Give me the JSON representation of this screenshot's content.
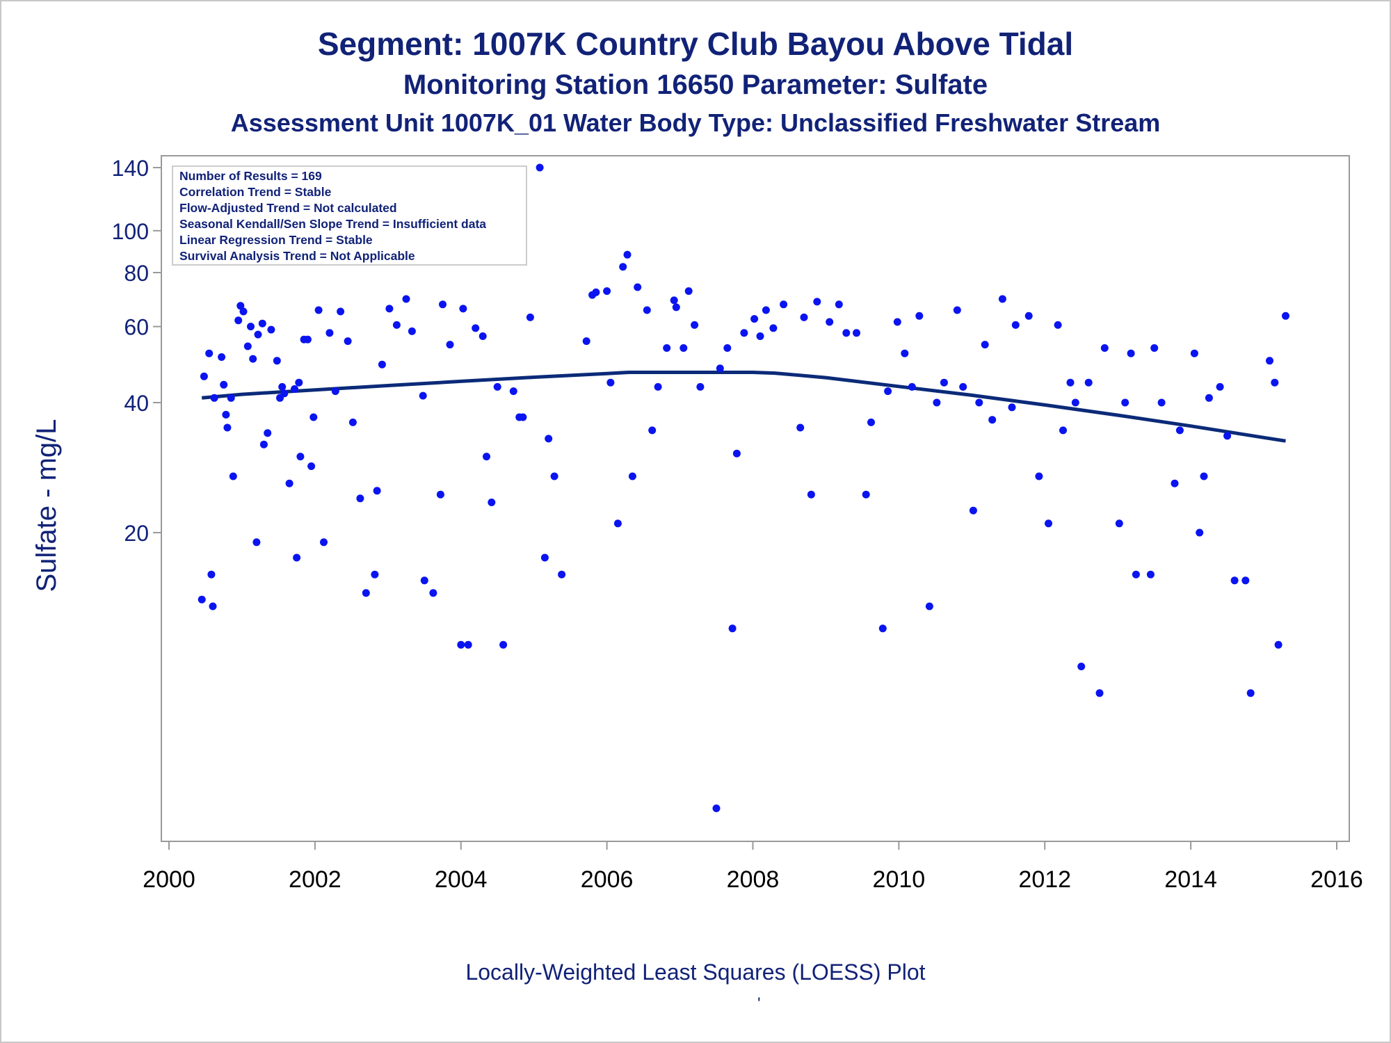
{
  "chart_data": {
    "type": "scatter",
    "title": "Segment: 1007K  Country Club Bayou Above Tidal",
    "subtitle": "Monitoring Station 16650 Parameter: Sulfate",
    "subtitle2": "Assessment Unit 1007K_01   Water Body Type: Unclassified Freshwater Stream",
    "ylabel": "Sulfate - mg/L",
    "footnote": "Locally-Weighted Least Squares (LOESS) Plot",
    "footnote_mark": "'",
    "y_scale": "log",
    "xlim": [
      2000,
      2016
    ],
    "ylim": [
      4.5,
      150
    ],
    "x_ticks": [
      2000,
      2002,
      2004,
      2006,
      2008,
      2010,
      2012,
      2014,
      2016
    ],
    "x_tick_labels": [
      "2000",
      "2002",
      "2004",
      "2006",
      "2008",
      "2010",
      "2012",
      "2014",
      "2016"
    ],
    "y_ticks": [
      20,
      40,
      60,
      80,
      100,
      140
    ],
    "y_tick_labels": [
      "20",
      "40",
      "60",
      "80",
      "100",
      "140"
    ],
    "grid": false,
    "legend_box_position": "top-left",
    "stats": [
      "Number of Results = 169",
      "Correlation Trend = Stable",
      "Flow-Adjusted Trend = Not calculated",
      "Seasonal Kendall/Sen Slope Trend = Insufficient data",
      "Linear Regression Trend = Stable",
      "Survival Analysis Trend = Not Applicable"
    ],
    "colors": {
      "points": "#0a14f0",
      "loess": "#0b2a78",
      "text": "#112277",
      "frame": "#999999"
    },
    "series": [
      {
        "kind": "points",
        "points": [
          [
            2000.45,
            14
          ],
          [
            2000.48,
            46
          ],
          [
            2000.55,
            52
          ],
          [
            2000.58,
            16
          ],
          [
            2000.6,
            13.5
          ],
          [
            2000.62,
            41
          ],
          [
            2000.72,
            51
          ],
          [
            2000.75,
            44
          ],
          [
            2000.78,
            37.5
          ],
          [
            2000.8,
            35
          ],
          [
            2000.85,
            41
          ],
          [
            2000.88,
            27
          ],
          [
            2000.95,
            62
          ],
          [
            2000.98,
            67
          ],
          [
            2001.02,
            65
          ],
          [
            2001.08,
            54
          ],
          [
            2001.12,
            60
          ],
          [
            2001.15,
            50.5
          ],
          [
            2001.2,
            19
          ],
          [
            2001.22,
            57.5
          ],
          [
            2001.28,
            61
          ],
          [
            2001.3,
            32
          ],
          [
            2001.35,
            34
          ],
          [
            2001.4,
            59
          ],
          [
            2001.48,
            50
          ],
          [
            2001.52,
            41
          ],
          [
            2001.55,
            43.5
          ],
          [
            2001.58,
            42
          ],
          [
            2001.65,
            26
          ],
          [
            2001.72,
            43
          ],
          [
            2001.75,
            17.5
          ],
          [
            2001.78,
            44.5
          ],
          [
            2001.8,
            30
          ],
          [
            2001.85,
            56
          ],
          [
            2001.9,
            56
          ],
          [
            2001.95,
            28.5
          ],
          [
            2001.98,
            37
          ],
          [
            2002.05,
            65.5
          ],
          [
            2002.12,
            19
          ],
          [
            2002.2,
            58
          ],
          [
            2002.28,
            42.5
          ],
          [
            2002.35,
            65
          ],
          [
            2002.45,
            55.5
          ],
          [
            2002.52,
            36
          ],
          [
            2002.62,
            24
          ],
          [
            2002.7,
            14.5
          ],
          [
            2002.82,
            16
          ],
          [
            2002.85,
            25
          ],
          [
            2002.92,
            49
          ],
          [
            2003.02,
            66
          ],
          [
            2003.12,
            60.5
          ],
          [
            2003.25,
            69.5
          ],
          [
            2003.33,
            58.5
          ],
          [
            2003.48,
            41.5
          ],
          [
            2003.5,
            15.5
          ],
          [
            2003.62,
            14.5
          ],
          [
            2003.72,
            24.5
          ],
          [
            2003.75,
            67.5
          ],
          [
            2003.85,
            54.5
          ],
          [
            2004.0,
            11
          ],
          [
            2004.03,
            66
          ],
          [
            2004.1,
            11
          ],
          [
            2004.2,
            59.5
          ],
          [
            2004.3,
            57
          ],
          [
            2004.35,
            30
          ],
          [
            2004.42,
            23.5
          ],
          [
            2004.5,
            43.5
          ],
          [
            2004.58,
            11
          ],
          [
            2004.72,
            42.5
          ],
          [
            2004.8,
            37
          ],
          [
            2004.85,
            37
          ],
          [
            2004.95,
            63
          ],
          [
            2005.08,
            140
          ],
          [
            2005.15,
            17.5
          ],
          [
            2005.2,
            33
          ],
          [
            2005.28,
            27
          ],
          [
            2005.38,
            16
          ],
          [
            2005.72,
            55.5
          ],
          [
            2005.8,
            71
          ],
          [
            2005.85,
            72
          ],
          [
            2006.0,
            72.5
          ],
          [
            2006.05,
            44.5
          ],
          [
            2006.15,
            21
          ],
          [
            2006.22,
            82.5
          ],
          [
            2006.28,
            88
          ],
          [
            2006.35,
            27
          ],
          [
            2006.42,
            74
          ],
          [
            2006.55,
            65.5
          ],
          [
            2006.62,
            34.5
          ],
          [
            2006.7,
            43.5
          ],
          [
            2006.82,
            53.5
          ],
          [
            2006.92,
            69
          ],
          [
            2006.95,
            66.5
          ],
          [
            2007.05,
            53.5
          ],
          [
            2007.12,
            72.5
          ],
          [
            2007.2,
            60.5
          ],
          [
            2007.28,
            43.5
          ],
          [
            2007.5,
            4.6
          ],
          [
            2007.55,
            48
          ],
          [
            2007.65,
            53.5
          ],
          [
            2007.72,
            12
          ],
          [
            2007.78,
            30.5
          ],
          [
            2007.88,
            58
          ],
          [
            2008.02,
            62.5
          ],
          [
            2008.1,
            57
          ],
          [
            2008.18,
            65.5
          ],
          [
            2008.28,
            59.5
          ],
          [
            2008.42,
            67.5
          ],
          [
            2008.65,
            35
          ],
          [
            2008.7,
            63
          ],
          [
            2008.8,
            24.5
          ],
          [
            2008.88,
            68.5
          ],
          [
            2009.05,
            61.5
          ],
          [
            2009.18,
            67.5
          ],
          [
            2009.28,
            58
          ],
          [
            2009.42,
            58
          ],
          [
            2009.55,
            24.5
          ],
          [
            2009.62,
            36
          ],
          [
            2009.78,
            12
          ],
          [
            2009.85,
            42.5
          ],
          [
            2009.98,
            61.5
          ],
          [
            2010.08,
            52
          ],
          [
            2010.18,
            43.5
          ],
          [
            2010.28,
            63.5
          ],
          [
            2010.42,
            13.5
          ],
          [
            2010.52,
            40
          ],
          [
            2010.62,
            44.5
          ],
          [
            2010.8,
            65.5
          ],
          [
            2010.88,
            43.5
          ],
          [
            2011.02,
            22.5
          ],
          [
            2011.1,
            40
          ],
          [
            2011.18,
            54.5
          ],
          [
            2011.28,
            36.5
          ],
          [
            2011.42,
            69.5
          ],
          [
            2011.55,
            39
          ],
          [
            2011.6,
            60.5
          ],
          [
            2011.78,
            63.5
          ],
          [
            2011.92,
            27
          ],
          [
            2012.05,
            21
          ],
          [
            2012.18,
            60.5
          ],
          [
            2012.25,
            34.5
          ],
          [
            2012.35,
            44.5
          ],
          [
            2012.42,
            40
          ],
          [
            2012.5,
            9.8
          ],
          [
            2012.6,
            44.5
          ],
          [
            2012.75,
            8.5
          ],
          [
            2012.82,
            53.5
          ],
          [
            2013.02,
            21
          ],
          [
            2013.1,
            40
          ],
          [
            2013.18,
            52
          ],
          [
            2013.25,
            16
          ],
          [
            2013.45,
            16
          ],
          [
            2013.5,
            53.5
          ],
          [
            2013.6,
            40
          ],
          [
            2013.78,
            26
          ],
          [
            2013.85,
            34.5
          ],
          [
            2014.05,
            52
          ],
          [
            2014.12,
            20
          ],
          [
            2014.18,
            27
          ],
          [
            2014.25,
            41
          ],
          [
            2014.4,
            43.5
          ],
          [
            2014.5,
            33.5
          ],
          [
            2014.6,
            15.5
          ],
          [
            2014.75,
            15.5
          ],
          [
            2014.82,
            8.5
          ],
          [
            2015.08,
            50
          ],
          [
            2015.15,
            44.5
          ],
          [
            2015.2,
            11
          ],
          [
            2015.3,
            63.5
          ]
        ]
      },
      {
        "kind": "loess",
        "points": [
          [
            2000.45,
            41
          ],
          [
            2001.0,
            41.8
          ],
          [
            2002.0,
            42.8
          ],
          [
            2003.0,
            43.8
          ],
          [
            2004.0,
            44.8
          ],
          [
            2005.0,
            45.8
          ],
          [
            2006.0,
            46.7
          ],
          [
            2006.3,
            47
          ],
          [
            2007.0,
            47
          ],
          [
            2008.0,
            47
          ],
          [
            2008.3,
            46.8
          ],
          [
            2009.0,
            45.7
          ],
          [
            2010.0,
            43.6
          ],
          [
            2011.0,
            41.6
          ],
          [
            2012.0,
            39.5
          ],
          [
            2013.0,
            37.4
          ],
          [
            2014.0,
            35.3
          ],
          [
            2015.0,
            33.2
          ],
          [
            2015.3,
            32.6
          ]
        ]
      }
    ]
  }
}
